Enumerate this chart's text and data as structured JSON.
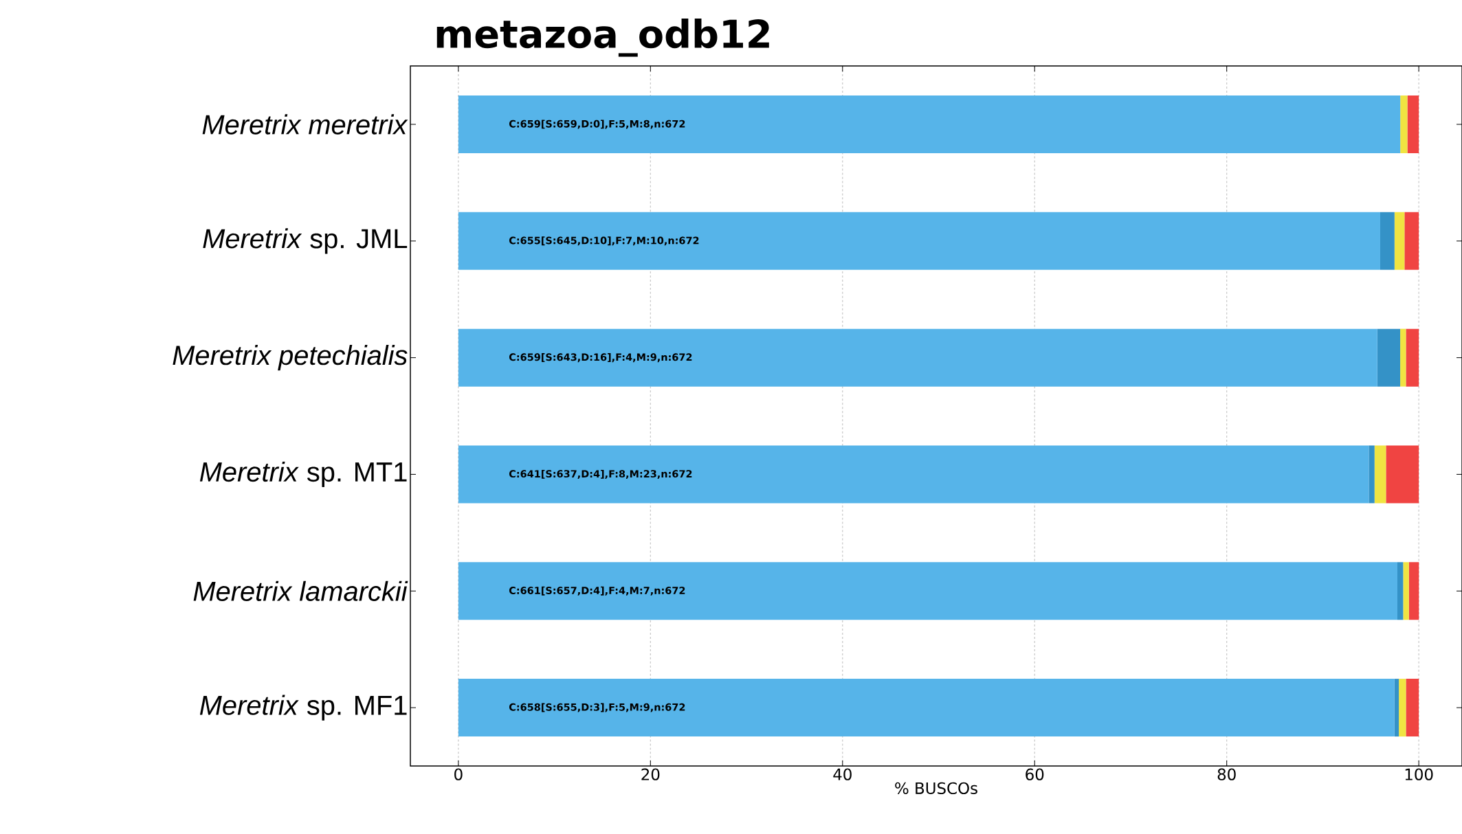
{
  "chart_data": {
    "type": "bar",
    "orientation": "horizontal",
    "stacked": true,
    "title": "metazoa_odb12",
    "xlabel": "% BUSCOs",
    "categories": [
      "*Meretrix meretrix*",
      "*Meretrix* sp. JML",
      "*Meretrix petechialis*",
      "*Meretrix* sp. MT1",
      "*Meretrix lamarckii*",
      "*Meretrix* sp. MF1"
    ],
    "series": [
      {
        "color": "#56b4e9",
        "values": [
          98.07,
          95.98,
          95.68,
          94.79,
          97.77,
          97.47
        ],
        "value_labels": [
          "C:659[S:659,D:0],F:5,M:8,n:672",
          "C:655[S:645,D:10],F:7,M:10,n:672",
          "C:659[S:643,D:16],F:4,M:9,n:672",
          "C:641[S:637,D:4],F:8,M:23,n:672",
          "C:661[S:657,D:4],F:4,M:7,n:672",
          "C:658[S:655,D:3],F:5,M:9,n:672"
        ]
      },
      {
        "color": "#3492c7",
        "values": [
          0,
          1.49,
          2.38,
          0.6,
          0.6,
          0.45
        ]
      },
      {
        "color": "#f0e442",
        "values": [
          0.74,
          1.04,
          0.6,
          1.19,
          0.6,
          0.74
        ]
      },
      {
        "color": "#f04442",
        "values": [
          1.19,
          1.49,
          1.34,
          3.42,
          1.04,
          1.34
        ]
      }
    ],
    "xlim": [
      -5,
      104.5
    ],
    "xticks": [
      0,
      20,
      40,
      60,
      80,
      100
    ],
    "grid": "x",
    "line_style": "dashed"
  }
}
